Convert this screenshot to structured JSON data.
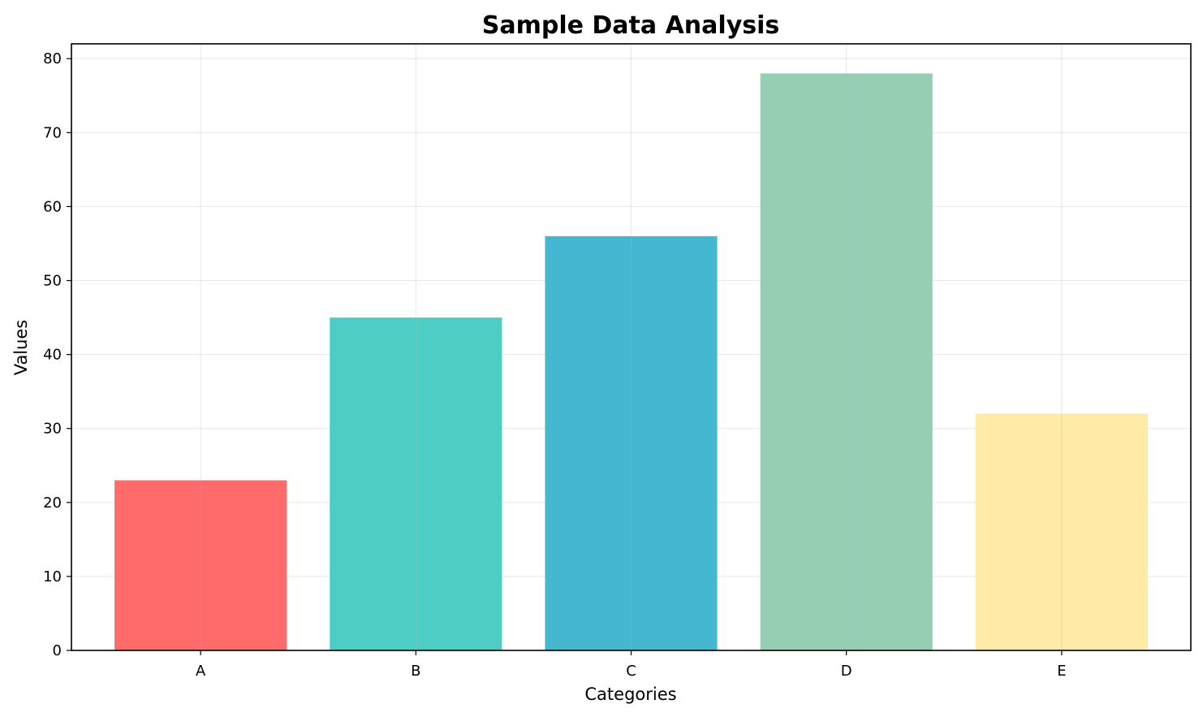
{
  "chart_data": {
    "type": "bar",
    "title": "Sample Data Analysis",
    "xlabel": "Categories",
    "ylabel": "Values",
    "categories": [
      "A",
      "B",
      "C",
      "D",
      "E"
    ],
    "values": [
      23,
      45,
      56,
      78,
      32
    ],
    "colors": [
      "#FF6B6B",
      "#4ECDC4",
      "#45B7D1",
      "#96CEB4",
      "#FFEAA7"
    ],
    "bar_alpha": 1.0,
    "ylim": [
      0,
      82
    ],
    "yticks": [
      0,
      10,
      20,
      30,
      40,
      50,
      60,
      70,
      80
    ],
    "grid": true,
    "legend": "none"
  }
}
